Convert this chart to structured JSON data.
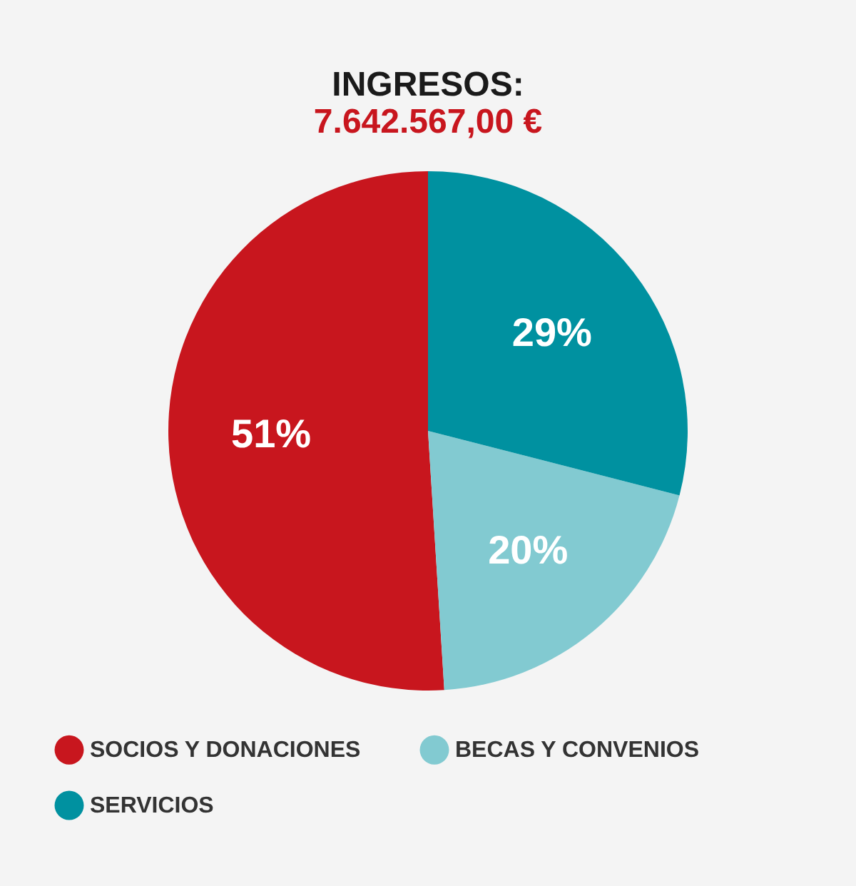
{
  "chart_data": {
    "type": "pie",
    "title": "INGRESOS:",
    "subtitle": "7.642.567,00 €",
    "categories": [
      "SOCIOS Y DONACIONES",
      "BECAS Y CONVENIOS",
      "SERVICIOS"
    ],
    "values": [
      51,
      20,
      29
    ],
    "colors": [
      "#c8161e",
      "#82cad1",
      "#0091a0"
    ],
    "value_labels": [
      "51%",
      "20%",
      "29%"
    ],
    "legend": "bottom"
  }
}
